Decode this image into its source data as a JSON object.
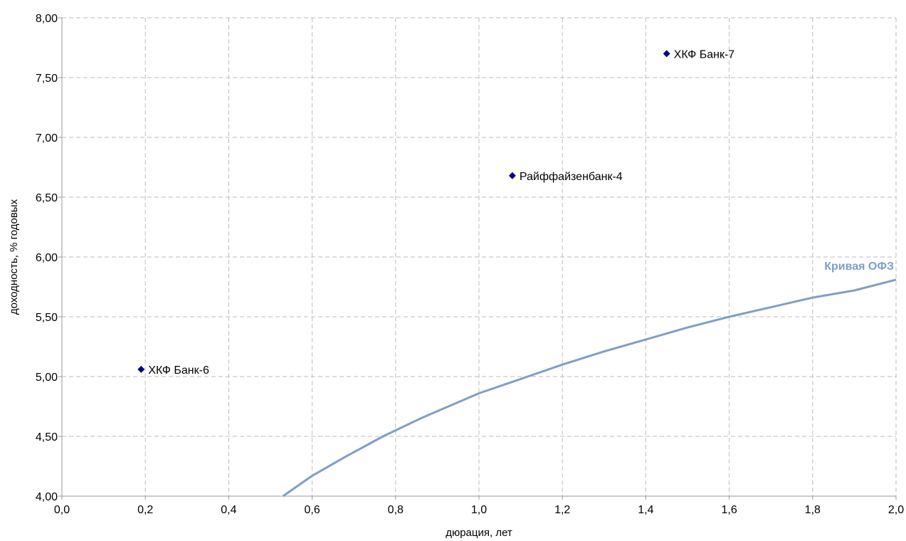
{
  "chart_data": {
    "type": "scatter",
    "xlabel": "дюрация, лет",
    "ylabel": "доходность, % годовых",
    "xlim": [
      0,
      2
    ],
    "ylim": [
      4,
      8
    ],
    "x_ticks": [
      "0,0",
      "0,2",
      "0,4",
      "0,6",
      "0,8",
      "1,0",
      "1,2",
      "1,4",
      "1,6",
      "1,8",
      "2,0"
    ],
    "y_ticks": [
      "4,00",
      "4,50",
      "5,00",
      "5,50",
      "6,00",
      "6,50",
      "7,00",
      "7,50",
      "8,00"
    ],
    "grid": true,
    "points": [
      {
        "label": "ХКФ Банк-6",
        "x": 0.19,
        "y": 5.06
      },
      {
        "label": "Райффайзенбанк-4",
        "x": 1.08,
        "y": 6.68
      },
      {
        "label": "ХКФ Банк-7",
        "x": 1.45,
        "y": 7.7
      }
    ],
    "curve": {
      "name": "Кривая ОФЗ",
      "color": "#7f9fc6",
      "x": [
        0.53,
        0.6,
        0.68,
        0.77,
        0.86,
        0.94,
        1.0,
        1.1,
        1.2,
        1.3,
        1.4,
        1.5,
        1.6,
        1.7,
        1.8,
        1.9,
        2.0
      ],
      "y": [
        4.0,
        4.17,
        4.33,
        4.5,
        4.65,
        4.77,
        4.86,
        4.98,
        5.1,
        5.21,
        5.31,
        5.41,
        5.5,
        5.58,
        5.66,
        5.72,
        5.81
      ]
    },
    "point_color": "#000080"
  }
}
